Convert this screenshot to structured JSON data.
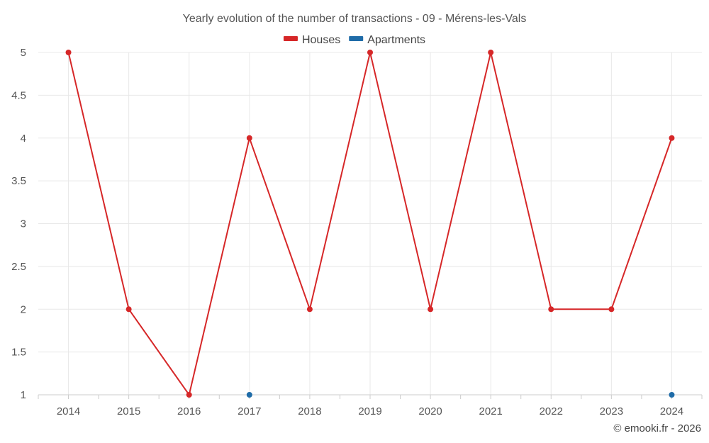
{
  "chart_data": {
    "type": "line",
    "title": "Yearly evolution of the number of transactions - 09 - Mérens-les-Vals",
    "xlabel": "",
    "ylabel": "",
    "categories": [
      "2014",
      "2015",
      "2016",
      "2017",
      "2018",
      "2019",
      "2020",
      "2021",
      "2022",
      "2023",
      "2024"
    ],
    "series": [
      {
        "name": "Houses",
        "color": "#d62728",
        "values": [
          5,
          2,
          1,
          4,
          2,
          5,
          2,
          5,
          2,
          2,
          4
        ],
        "line": true
      },
      {
        "name": "Apartments",
        "color": "#1f6ca8",
        "values": [
          null,
          null,
          null,
          1,
          null,
          null,
          null,
          null,
          null,
          null,
          1
        ],
        "line": false
      }
    ],
    "ylim": [
      1,
      5
    ],
    "yticks": [
      "1",
      "1.5",
      "2",
      "2.5",
      "3",
      "3.5",
      "4",
      "4.5",
      "5"
    ],
    "grid": true,
    "legend_position": "top-center"
  },
  "credit": "© emooki.fr - 2026"
}
